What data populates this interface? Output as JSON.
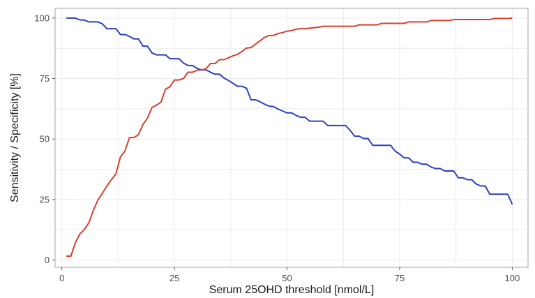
{
  "chart_data": {
    "type": "line",
    "title": "",
    "xlabel": "Serum 25OHD threshold [nmol/L]",
    "ylabel": "Sensitivity / Specificity [%]",
    "xlim": [
      -1.5,
      103.5
    ],
    "ylim": [
      -3,
      104
    ],
    "x_ticks": [
      0,
      25,
      50,
      75,
      100
    ],
    "y_ticks": [
      0,
      25,
      50,
      75,
      100
    ],
    "grid": true,
    "legend": "none",
    "series": [
      {
        "color": "#2b3fbd",
        "points": [
          [
            1,
            100
          ],
          [
            3,
            100
          ],
          [
            4,
            99.2
          ],
          [
            5,
            99.2
          ],
          [
            6,
            98.4
          ],
          [
            8,
            98.4
          ],
          [
            9,
            97.6
          ],
          [
            10,
            95.6
          ],
          [
            12,
            95.6
          ],
          [
            13,
            93.2
          ],
          [
            14,
            93.2
          ],
          [
            15,
            92.4
          ],
          [
            16,
            91.4
          ],
          [
            17,
            91.4
          ],
          [
            18,
            88.4
          ],
          [
            19,
            88.4
          ],
          [
            20,
            85.6
          ],
          [
            21,
            84.8
          ],
          [
            23,
            84.8
          ],
          [
            24,
            83.2
          ],
          [
            26,
            83.2
          ],
          [
            27,
            81.4
          ],
          [
            28,
            80.4
          ],
          [
            29,
            80.4
          ],
          [
            30,
            79.2
          ],
          [
            31,
            78.6
          ],
          [
            32,
            78.6
          ],
          [
            33,
            77.6
          ],
          [
            34,
            76.8
          ],
          [
            35,
            76.8
          ],
          [
            36,
            75.2
          ],
          [
            37,
            74.2
          ],
          [
            38,
            73
          ],
          [
            39,
            71.8
          ],
          [
            40,
            71.8
          ],
          [
            41,
            71
          ],
          [
            42,
            66.2
          ],
          [
            43,
            66.2
          ],
          [
            44,
            65.4
          ],
          [
            45,
            64.4
          ],
          [
            46,
            63.6
          ],
          [
            47,
            63.4
          ],
          [
            48,
            62.4
          ],
          [
            49,
            61.6
          ],
          [
            50,
            60.8
          ],
          [
            51,
            60.8
          ],
          [
            52,
            59.8
          ],
          [
            53,
            59
          ],
          [
            54,
            59
          ],
          [
            55,
            57.4
          ],
          [
            58,
            57.4
          ],
          [
            59,
            55.6
          ],
          [
            63,
            55.6
          ],
          [
            64,
            53.6
          ],
          [
            65,
            51.2
          ],
          [
            66,
            51.2
          ],
          [
            67,
            50.2
          ],
          [
            68,
            50.2
          ],
          [
            69,
            47.4
          ],
          [
            73,
            47.4
          ],
          [
            74,
            45
          ],
          [
            75,
            43.8
          ],
          [
            76,
            42.2
          ],
          [
            77,
            42.2
          ],
          [
            78,
            40.4
          ],
          [
            79,
            40.4
          ],
          [
            80,
            39.6
          ],
          [
            81,
            39.6
          ],
          [
            82,
            38.4
          ],
          [
            83,
            37.8
          ],
          [
            84,
            37.8
          ],
          [
            85,
            36.8
          ],
          [
            87,
            36.8
          ],
          [
            88,
            34
          ],
          [
            89,
            34
          ],
          [
            90,
            33.2
          ],
          [
            91,
            33.2
          ],
          [
            92,
            31.4
          ],
          [
            93,
            30.6
          ],
          [
            94,
            30.6
          ],
          [
            95,
            27.2
          ],
          [
            99,
            27.2
          ],
          [
            100,
            23
          ]
        ]
      },
      {
        "color": "#d6402d",
        "points": [
          [
            1,
            1.6
          ],
          [
            2,
            1.6
          ],
          [
            3,
            7.2
          ],
          [
            4,
            10.8
          ],
          [
            5,
            12.6
          ],
          [
            6,
            15.4
          ],
          [
            7,
            20.6
          ],
          [
            8,
            24.8
          ],
          [
            9,
            27.6
          ],
          [
            10,
            30.6
          ],
          [
            11,
            33.2
          ],
          [
            12,
            35.6
          ],
          [
            13,
            42.6
          ],
          [
            14,
            45
          ],
          [
            15,
            50.6
          ],
          [
            16,
            50.6
          ],
          [
            17,
            51.8
          ],
          [
            18,
            56
          ],
          [
            19,
            58.6
          ],
          [
            20,
            63
          ],
          [
            21,
            64
          ],
          [
            22,
            65.2
          ],
          [
            23,
            70.6
          ],
          [
            24,
            71.6
          ],
          [
            25,
            74.4
          ],
          [
            26,
            74.4
          ],
          [
            27,
            75
          ],
          [
            28,
            77.6
          ],
          [
            29,
            77.6
          ],
          [
            30,
            78.4
          ],
          [
            31,
            78.6
          ],
          [
            32,
            79
          ],
          [
            33,
            81.2
          ],
          [
            34,
            81.2
          ],
          [
            35,
            82.8
          ],
          [
            36,
            82.8
          ],
          [
            37,
            83.6
          ],
          [
            38,
            84.4
          ],
          [
            39,
            85
          ],
          [
            40,
            86.2
          ],
          [
            41,
            87.6
          ],
          [
            42,
            87.8
          ],
          [
            43,
            89.2
          ],
          [
            44,
            90.6
          ],
          [
            45,
            92
          ],
          [
            46,
            92.8
          ],
          [
            47,
            92.8
          ],
          [
            48,
            93.6
          ],
          [
            49,
            94
          ],
          [
            50,
            94.6
          ],
          [
            51,
            94.8
          ],
          [
            52,
            95.4
          ],
          [
            53,
            95.6
          ],
          [
            54,
            95.6
          ],
          [
            55,
            95.8
          ],
          [
            57,
            96.2
          ],
          [
            58,
            96.6
          ],
          [
            65,
            96.6
          ],
          [
            66,
            97.2
          ],
          [
            70,
            97.2
          ],
          [
            71,
            97.8
          ],
          [
            76,
            97.8
          ],
          [
            77,
            98.4
          ],
          [
            81,
            98.4
          ],
          [
            82,
            99
          ],
          [
            86,
            99
          ],
          [
            87,
            99.4
          ],
          [
            95,
            99.4
          ],
          [
            96,
            99.8
          ],
          [
            99,
            99.8
          ],
          [
            100,
            100
          ]
        ]
      }
    ]
  }
}
